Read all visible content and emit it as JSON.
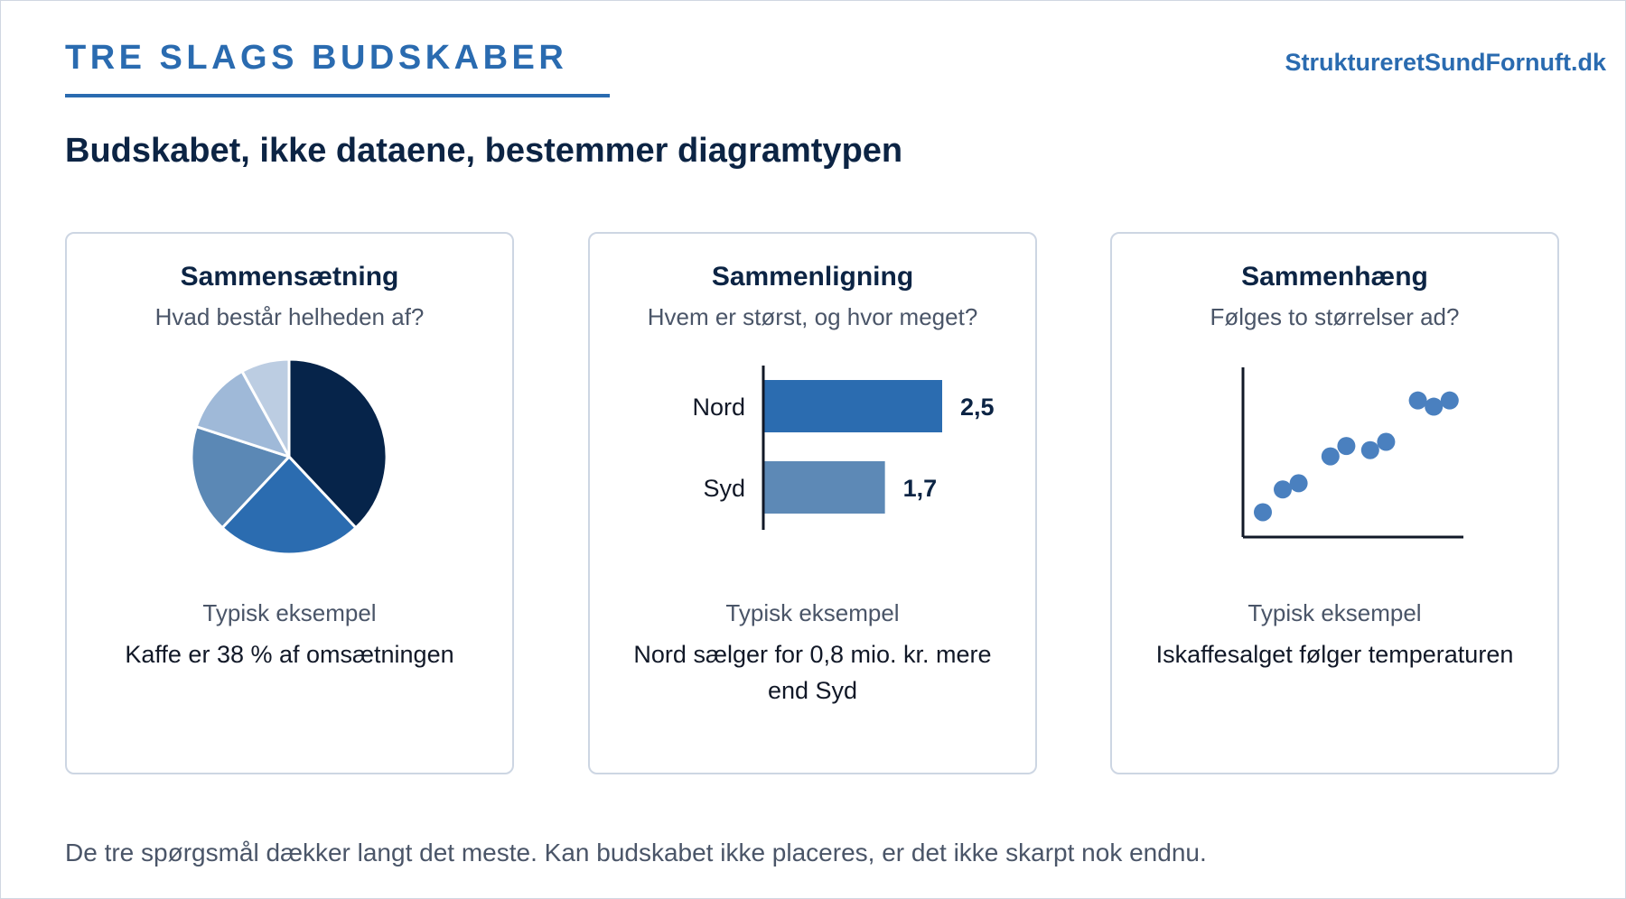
{
  "header": {
    "kicker": "TRE SLAGS BUDSKABER",
    "brand": "StruktureretSundFornuft.dk",
    "headline": "Budskabet, ikke dataene, bestemmer diagramtypen"
  },
  "cards": [
    {
      "title": "Sammensætning",
      "question": "Hvad består helheden af?",
      "example_label": "Typisk eksempel",
      "example_text": "Kaffe er 38 % af omsætningen"
    },
    {
      "title": "Sammenligning",
      "question": "Hvem er størst, og hvor meget?",
      "example_label": "Typisk eksempel",
      "example_text": "Nord sælger for 0,8 mio. kr. mere end Syd"
    },
    {
      "title": "Sammenhæng",
      "question": "Følges to størrelser ad?",
      "example_label": "Typisk eksempel",
      "example_text": "Iskaffesalget følger temperaturen"
    }
  ],
  "footer": {
    "text": "De tre spørgsmål dækker langt det meste. Kan budskabet ikke placeres, er det ikke skarpt nok endnu."
  },
  "colors": {
    "accent": "#2a6bb0",
    "navy": "#0c2444",
    "text_muted": "#4a5568",
    "border": "#cdd6e3"
  },
  "chart_data": [
    {
      "type": "pie",
      "slices": [
        {
          "value": 38,
          "color": "#06244a"
        },
        {
          "value": 24,
          "color": "#2b6cb0"
        },
        {
          "value": 18,
          "color": "#5b88b5"
        },
        {
          "value": 12,
          "color": "#9fb9d8"
        },
        {
          "value": 8,
          "color": "#bccde2"
        }
      ]
    },
    {
      "type": "bar",
      "orientation": "horizontal",
      "categories": [
        "Nord",
        "Syd"
      ],
      "values": [
        2.5,
        1.7
      ],
      "value_labels": [
        "2,5",
        "1,7"
      ],
      "colors": [
        "#2b6cb0",
        "#5d89b6"
      ],
      "xlim": [
        0,
        2.5
      ]
    },
    {
      "type": "scatter",
      "x": [
        1,
        2,
        2.8,
        4.4,
        5.2,
        6.4,
        7.2,
        8.8,
        9.6,
        10.4
      ],
      "y": [
        1,
        2.1,
        2.4,
        3.7,
        4.2,
        4.0,
        4.4,
        6.4,
        6.1,
        6.4
      ],
      "xlim": [
        0,
        11
      ],
      "ylim": [
        -0.2,
        8
      ],
      "color": "#4a80bf"
    }
  ]
}
